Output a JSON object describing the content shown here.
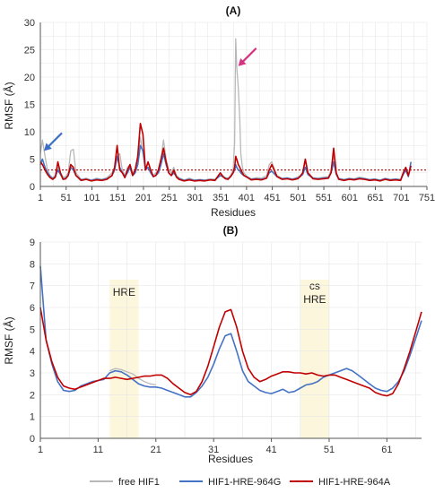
{
  "colors": {
    "free": "#b8b8b8",
    "g964": "#4472c4",
    "a964": "#c00000",
    "threshold": "#c00000",
    "arrow_blue": "#3a6fc4",
    "arrow_pink": "#d6337f",
    "highlight": "#fbf6dc",
    "grid": "#e6e6e6"
  },
  "legend": [
    {
      "label": "free HIF1",
      "series": "free"
    },
    {
      "label": "HIF1-HRE-964G",
      "series": "g964"
    },
    {
      "label": "HIF1-HRE-964A",
      "series": "a964"
    }
  ],
  "chart_data": [
    {
      "type": "line",
      "title": "(A)",
      "xlabel": "Residues",
      "ylabel": "RMSF (Å)",
      "xlim": [
        1,
        751
      ],
      "ylim": [
        0,
        30
      ],
      "xticks": [
        1,
        51,
        101,
        151,
        201,
        251,
        301,
        351,
        401,
        451,
        501,
        551,
        601,
        651,
        701,
        751
      ],
      "yticks": [
        0,
        5,
        10,
        15,
        20,
        25,
        30
      ],
      "threshold": 3,
      "threshold_style": "dotted",
      "arrows": [
        {
          "color": "blue",
          "target": [
            8,
            6.5
          ]
        },
        {
          "color": "pink",
          "target": [
            385,
            22
          ]
        }
      ],
      "series": [
        {
          "key": "free",
          "name": "free HIF1",
          "x": [
            1,
            5,
            10,
            15,
            20,
            25,
            30,
            35,
            40,
            45,
            50,
            55,
            60,
            65,
            70,
            80,
            90,
            100,
            110,
            120,
            130,
            140,
            145,
            150,
            155,
            160,
            165,
            170,
            175,
            180,
            185,
            190,
            195,
            200,
            205,
            210,
            215,
            220,
            225,
            230,
            235,
            240,
            245,
            250,
            255,
            260,
            265,
            270,
            280,
            290,
            300,
            310,
            320,
            330,
            340,
            350,
            355,
            360,
            365,
            370,
            375,
            378,
            380,
            382,
            385,
            388,
            390,
            393,
            396,
            400,
            410,
            420,
            430,
            440,
            445,
            450,
            460,
            470,
            480,
            490,
            500,
            505,
            510,
            515,
            520,
            530,
            540,
            550,
            560,
            565,
            570,
            575,
            580,
            590,
            600,
            610,
            620,
            630,
            640,
            650,
            660,
            670,
            680,
            690,
            700,
            705,
            710,
            715,
            720
          ],
          "values": [
            6,
            8.5,
            5.5,
            3,
            2,
            1.6,
            2,
            3.5,
            2.5,
            1.7,
            1.8,
            2.5,
            6.5,
            6.8,
            2.5,
            1.3,
            1.5,
            1.2,
            1.5,
            1.3,
            1.6,
            2.5,
            3.5,
            5.5,
            6,
            3,
            2,
            3.5,
            4,
            2.5,
            3,
            5,
            9,
            6,
            3,
            4.5,
            3,
            2,
            2.5,
            3,
            5,
            8.5,
            5,
            3,
            2.5,
            3.5,
            2,
            1.6,
            1.2,
            1.5,
            1.2,
            1.3,
            1.2,
            1.4,
            1.3,
            2.5,
            2,
            1.6,
            1.5,
            2,
            3,
            8,
            27,
            22,
            18,
            12,
            6,
            3.5,
            2.5,
            2,
            1.4,
            1.6,
            1.5,
            2,
            4,
            4.5,
            2,
            1.5,
            1.6,
            1.4,
            1.7,
            2,
            2.5,
            4.5,
            2.5,
            1.6,
            1.5,
            1.7,
            1.8,
            3,
            5.5,
            2.5,
            1.5,
            1.3,
            1.5,
            1.4,
            1.7,
            1.5,
            1.3,
            1.4,
            1.2,
            1.5,
            1.3,
            1.4,
            1.3,
            2.5,
            3.5,
            2,
            3.5
          ]
        },
        {
          "key": "g964",
          "name": "HIF1-HRE-964G",
          "x": [
            1,
            5,
            10,
            15,
            20,
            25,
            30,
            35,
            40,
            45,
            50,
            55,
            60,
            65,
            70,
            80,
            90,
            100,
            110,
            120,
            130,
            140,
            145,
            150,
            155,
            160,
            165,
            170,
            175,
            180,
            185,
            190,
            195,
            200,
            205,
            210,
            215,
            220,
            225,
            230,
            235,
            240,
            245,
            250,
            255,
            260,
            265,
            270,
            280,
            290,
            300,
            310,
            320,
            330,
            340,
            350,
            355,
            360,
            365,
            370,
            375,
            378,
            380,
            382,
            385,
            388,
            390,
            393,
            396,
            400,
            410,
            420,
            430,
            440,
            445,
            450,
            460,
            470,
            480,
            490,
            500,
            505,
            510,
            515,
            520,
            530,
            540,
            550,
            560,
            565,
            570,
            575,
            580,
            590,
            600,
            610,
            620,
            630,
            640,
            650,
            660,
            670,
            680,
            690,
            700,
            705,
            710,
            715,
            720
          ],
          "values": [
            4,
            5,
            3.5,
            2.5,
            1.8,
            1.4,
            1.8,
            3,
            2.2,
            1.4,
            1.5,
            2,
            3.5,
            3,
            2,
            1.2,
            1.3,
            1.1,
            1.3,
            1.2,
            1.4,
            2,
            3,
            5.5,
            3.5,
            2.5,
            1.8,
            2.5,
            3.5,
            2,
            2.5,
            4,
            7.5,
            6.5,
            3,
            3.5,
            2.5,
            1.8,
            2,
            2.5,
            4,
            6,
            4,
            2.5,
            2,
            2.5,
            1.8,
            1.4,
            1.1,
            1.3,
            1.1,
            1.2,
            1.1,
            1.2,
            1.2,
            2,
            1.8,
            1.5,
            1.4,
            1.8,
            2.5,
            3,
            4,
            3.5,
            3,
            2.8,
            2.5,
            2.2,
            2,
            1.8,
            1.3,
            1.4,
            1.3,
            1.6,
            2.5,
            2.8,
            1.8,
            1.4,
            1.5,
            1.3,
            1.5,
            1.8,
            2.2,
            3.5,
            2.2,
            1.5,
            1.4,
            1.5,
            1.6,
            2.5,
            4.5,
            2.2,
            1.4,
            1.2,
            1.4,
            1.3,
            1.5,
            1.4,
            1.2,
            1.3,
            1.1,
            1.4,
            1.2,
            1.3,
            1.2,
            2.2,
            3,
            1.8,
            4.5
          ]
        },
        {
          "key": "a964",
          "name": "HIF1-HRE-964A",
          "x": [
            1,
            5,
            10,
            15,
            20,
            25,
            30,
            35,
            40,
            45,
            50,
            55,
            60,
            65,
            70,
            80,
            90,
            100,
            110,
            120,
            130,
            140,
            145,
            150,
            155,
            160,
            165,
            170,
            175,
            180,
            185,
            190,
            195,
            200,
            205,
            210,
            215,
            220,
            225,
            230,
            235,
            240,
            245,
            250,
            255,
            260,
            265,
            270,
            280,
            290,
            300,
            310,
            320,
            330,
            340,
            350,
            355,
            360,
            365,
            370,
            375,
            378,
            380,
            382,
            385,
            388,
            390,
            393,
            396,
            400,
            410,
            420,
            430,
            440,
            445,
            450,
            460,
            470,
            480,
            490,
            500,
            505,
            510,
            515,
            520,
            530,
            540,
            550,
            560,
            565,
            570,
            575,
            580,
            590,
            600,
            610,
            620,
            630,
            640,
            650,
            660,
            670,
            680,
            690,
            700,
            705,
            710,
            715,
            720
          ],
          "values": [
            4.5,
            4,
            3,
            2.2,
            1.6,
            1.3,
            1.7,
            4.5,
            2.5,
            1.3,
            1.4,
            2,
            4,
            3.5,
            2,
            1.1,
            1.3,
            1,
            1.2,
            1.1,
            1.3,
            2,
            3.5,
            7.5,
            3,
            2.5,
            1.6,
            3,
            4,
            2,
            3,
            5.5,
            11.5,
            9.5,
            3,
            4.5,
            3,
            1.8,
            2,
            3,
            5,
            7,
            4.5,
            2.5,
            2,
            3,
            1.7,
            1.3,
            1,
            1.2,
            1,
            1.1,
            1,
            1.2,
            1.1,
            2.5,
            1.8,
            1.4,
            1.3,
            1.8,
            2.5,
            3.5,
            5.5,
            5,
            4,
            3.5,
            3,
            2.5,
            2,
            1.8,
            1.2,
            1.3,
            1.2,
            1.5,
            3,
            4,
            1.8,
            1.3,
            1.4,
            1.2,
            1.4,
            1.8,
            2.5,
            5,
            2.5,
            1.4,
            1.3,
            1.4,
            1.5,
            2.5,
            7,
            2.5,
            1.3,
            1.1,
            1.3,
            1.2,
            1.4,
            1.3,
            1.1,
            1.2,
            1,
            1.3,
            1.1,
            1.2,
            1.1,
            2.5,
            3.5,
            2,
            3.8
          ]
        }
      ]
    },
    {
      "type": "line",
      "title": "(B)",
      "xlabel": "Residues",
      "ylabel": "RMSF (Å)",
      "xlim": [
        1,
        67
      ],
      "ylim": [
        0,
        9
      ],
      "xticks": [
        1,
        11,
        21,
        31,
        41,
        51,
        61
      ],
      "yticks": [
        0,
        1,
        2,
        3,
        4,
        5,
        6,
        7,
        8,
        9
      ],
      "regions": [
        {
          "label": "HRE",
          "x": [
            13,
            18
          ]
        },
        {
          "label": "cs\nHRE",
          "x": [
            46,
            51
          ]
        }
      ],
      "series": [
        {
          "key": "free",
          "name": "free HIF1",
          "x": [
            13,
            14,
            15,
            16,
            17,
            18,
            19,
            20,
            21
          ],
          "values": [
            3.1,
            3.2,
            3.15,
            3.05,
            2.95,
            2.75,
            2.6,
            2.5,
            2.45
          ]
        },
        {
          "key": "g964",
          "name": "HIF1-HRE-964G",
          "x": [
            1,
            2,
            3,
            4,
            5,
            6,
            7,
            8,
            9,
            10,
            11,
            12,
            13,
            14,
            15,
            16,
            17,
            18,
            19,
            20,
            21,
            22,
            23,
            24,
            25,
            26,
            27,
            28,
            29,
            30,
            31,
            32,
            33,
            34,
            35,
            36,
            37,
            38,
            39,
            40,
            41,
            42,
            43,
            44,
            45,
            46,
            47,
            48,
            49,
            50,
            51,
            52,
            53,
            54,
            55,
            56,
            57,
            58,
            59,
            60,
            61,
            62,
            63,
            64,
            65,
            66,
            67
          ],
          "values": [
            7.9,
            4.5,
            3.4,
            2.6,
            2.2,
            2.15,
            2.2,
            2.4,
            2.5,
            2.6,
            2.65,
            2.7,
            3.0,
            3.1,
            3.05,
            2.9,
            2.7,
            2.5,
            2.4,
            2.35,
            2.35,
            2.3,
            2.2,
            2.1,
            2.0,
            1.9,
            1.9,
            2.1,
            2.4,
            2.8,
            3.4,
            4.1,
            4.7,
            4.8,
            4.0,
            3.1,
            2.6,
            2.4,
            2.2,
            2.1,
            2.05,
            2.15,
            2.25,
            2.1,
            2.15,
            2.3,
            2.45,
            2.5,
            2.6,
            2.8,
            2.9,
            3.0,
            3.1,
            3.2,
            3.1,
            2.9,
            2.7,
            2.5,
            2.3,
            2.2,
            2.15,
            2.3,
            2.6,
            3.1,
            3.8,
            4.6,
            5.4
          ]
        },
        {
          "key": "a964",
          "name": "HIF1-HRE-964A",
          "x": [
            1,
            2,
            3,
            4,
            5,
            6,
            7,
            8,
            9,
            10,
            11,
            12,
            13,
            14,
            15,
            16,
            17,
            18,
            19,
            20,
            21,
            22,
            23,
            24,
            25,
            26,
            27,
            28,
            29,
            30,
            31,
            32,
            33,
            34,
            35,
            36,
            37,
            38,
            39,
            40,
            41,
            42,
            43,
            44,
            45,
            46,
            47,
            48,
            49,
            50,
            51,
            52,
            53,
            54,
            55,
            56,
            57,
            58,
            59,
            60,
            61,
            62,
            63,
            64,
            65,
            66,
            67
          ],
          "values": [
            6.0,
            4.5,
            3.5,
            2.8,
            2.4,
            2.3,
            2.25,
            2.35,
            2.45,
            2.55,
            2.65,
            2.75,
            2.75,
            2.8,
            2.75,
            2.7,
            2.75,
            2.8,
            2.85,
            2.85,
            2.9,
            2.9,
            2.75,
            2.5,
            2.3,
            2.1,
            2.0,
            2.15,
            2.6,
            3.3,
            4.2,
            5.1,
            5.8,
            5.9,
            5.1,
            4.0,
            3.2,
            2.8,
            2.6,
            2.7,
            2.85,
            2.95,
            3.05,
            3.05,
            3.0,
            3.0,
            2.95,
            3.0,
            2.9,
            2.85,
            2.9,
            2.9,
            2.8,
            2.7,
            2.6,
            2.5,
            2.4,
            2.3,
            2.1,
            2.0,
            1.95,
            2.05,
            2.5,
            3.2,
            4.0,
            4.9,
            5.8
          ]
        }
      ]
    }
  ]
}
